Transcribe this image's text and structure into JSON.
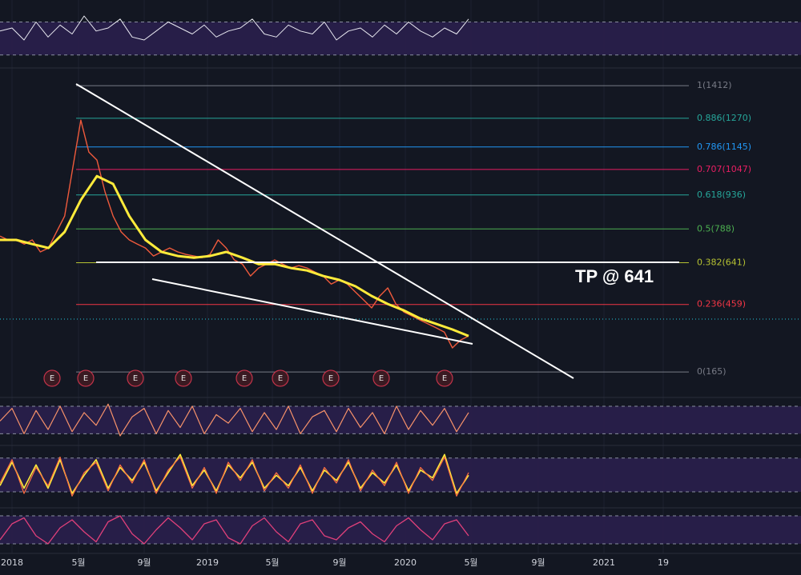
{
  "chart_data": [
    {
      "type": "line",
      "pane": "price",
      "ylim": [
        54,
        1489
      ],
      "series": [
        {
          "color": "#ef5a3c",
          "width": 1.4,
          "values": [
            757,
            740,
            740,
            722,
            740,
            688,
            705,
            775,
            844,
            1053,
            1262,
            1123,
            1088,
            949,
            844,
            775,
            740,
            722,
            705,
            670,
            688,
            705,
            688,
            677,
            670,
            663,
            677,
            740,
            705,
            653,
            635,
            583,
            618,
            635,
            653,
            635,
            618,
            628,
            618,
            600,
            583,
            548,
            566,
            548,
            513,
            479,
            444,
            496,
            531,
            461,
            426,
            409,
            391,
            374,
            357,
            339,
            270,
            304,
            322
          ]
        },
        {
          "color": "#ffeb3b",
          "width": 3,
          "values": [
            740,
            740,
            722,
            705,
            775,
            914,
            1018,
            984,
            844,
            740,
            688,
            670,
            663,
            670,
            688,
            663,
            635,
            635,
            618,
            607,
            583,
            566,
            538,
            496,
            461,
            433,
            398,
            374,
            350,
            322
          ]
        }
      ],
      "levels": [
        {
          "value": 1412,
          "label": "1(1412)",
          "color": "#787b86"
        },
        {
          "value": 1270,
          "label": "0.886(1270)",
          "color": "#26a69a"
        },
        {
          "value": 1145,
          "label": "0.786(1145)",
          "color": "#2196f3"
        },
        {
          "value": 1047,
          "label": "0.707(1047)",
          "color": "#e91e63"
        },
        {
          "value": 936,
          "label": "0.618(936)",
          "color": "#26a69a"
        },
        {
          "value": 788,
          "label": "0.5(788)",
          "color": "#4caf50"
        },
        {
          "value": 641,
          "label": "0.382(641)",
          "color": "#b5c132"
        },
        {
          "value": 459,
          "label": "0.236(459)",
          "color": "#f23645"
        },
        {
          "value": 165,
          "label": "0(165)",
          "color": "#787b86"
        }
      ],
      "annotation": "TP @ 641",
      "events": [
        "E",
        "E",
        "E",
        "E",
        "E",
        "E",
        "E",
        "E",
        "E"
      ],
      "x_labels": [
        "2018",
        "5월",
        "9월",
        "2019",
        "5월",
        "9월",
        "2020",
        "5월",
        "9월",
        "2021",
        "19"
      ]
    },
    {
      "type": "line",
      "pane": "osc1",
      "ylim": [
        0,
        100
      ],
      "bands": [
        15,
        70
      ],
      "series": [
        {
          "color": "#e8e8f0",
          "width": 1,
          "values": [
            55,
            60,
            40,
            70,
            45,
            65,
            50,
            80,
            55,
            60,
            75,
            45,
            40,
            55,
            70,
            60,
            50,
            65,
            45,
            55,
            60,
            75,
            50,
            45,
            65,
            55,
            50,
            70,
            40,
            55,
            60,
            45,
            65,
            50,
            70,
            55,
            45,
            60,
            50,
            75
          ]
        }
      ]
    },
    {
      "type": "line",
      "pane": "osc2",
      "ylim": [
        0,
        100
      ],
      "bands": [
        20,
        85
      ],
      "series": [
        {
          "color": "#f7926a",
          "width": 1.2,
          "values": [
            50,
            80,
            20,
            75,
            30,
            85,
            25,
            70,
            40,
            90,
            15,
            60,
            80,
            20,
            75,
            35,
            85,
            20,
            65,
            45,
            80,
            25,
            70,
            30,
            85,
            20,
            60,
            75,
            25,
            80,
            35,
            70,
            20,
            85,
            30,
            75,
            40,
            80,
            25,
            70
          ]
        }
      ]
    },
    {
      "type": "line",
      "pane": "osc3",
      "ylim": [
        0,
        100
      ],
      "bands": [
        23,
        88
      ],
      "series": [
        {
          "color": "#ffeb3b",
          "width": 1.6,
          "values": [
            35,
            80,
            30,
            75,
            30,
            85,
            20,
            55,
            85,
            30,
            70,
            45,
            80,
            25,
            60,
            95,
            35,
            65,
            25,
            75,
            50,
            80,
            30,
            55,
            35,
            70,
            25,
            65,
            45,
            80,
            30,
            60,
            40,
            75,
            25,
            65,
            50,
            95,
            20,
            55
          ]
        },
        {
          "color": "#ff7043",
          "width": 1.2,
          "values": [
            40,
            85,
            20,
            70,
            35,
            90,
            15,
            60,
            80,
            25,
            75,
            40,
            85,
            20,
            65,
            90,
            30,
            70,
            20,
            80,
            45,
            85,
            25,
            60,
            30,
            75,
            20,
            70,
            40,
            85,
            25,
            65,
            35,
            80,
            20,
            70,
            45,
            90,
            15,
            60
          ]
        }
      ]
    },
    {
      "type": "line",
      "pane": "osc4",
      "ylim": [
        0,
        100
      ],
      "bands": [
        20,
        90
      ],
      "series": [
        {
          "color": "#e0407a",
          "width": 1.3,
          "values": [
            30,
            70,
            85,
            40,
            20,
            60,
            80,
            50,
            25,
            75,
            90,
            45,
            20,
            55,
            85,
            60,
            30,
            70,
            80,
            35,
            20,
            65,
            85,
            50,
            25,
            70,
            80,
            40,
            30,
            60,
            75,
            45,
            25,
            65,
            85,
            55,
            30,
            70,
            80,
            40
          ]
        }
      ]
    }
  ]
}
